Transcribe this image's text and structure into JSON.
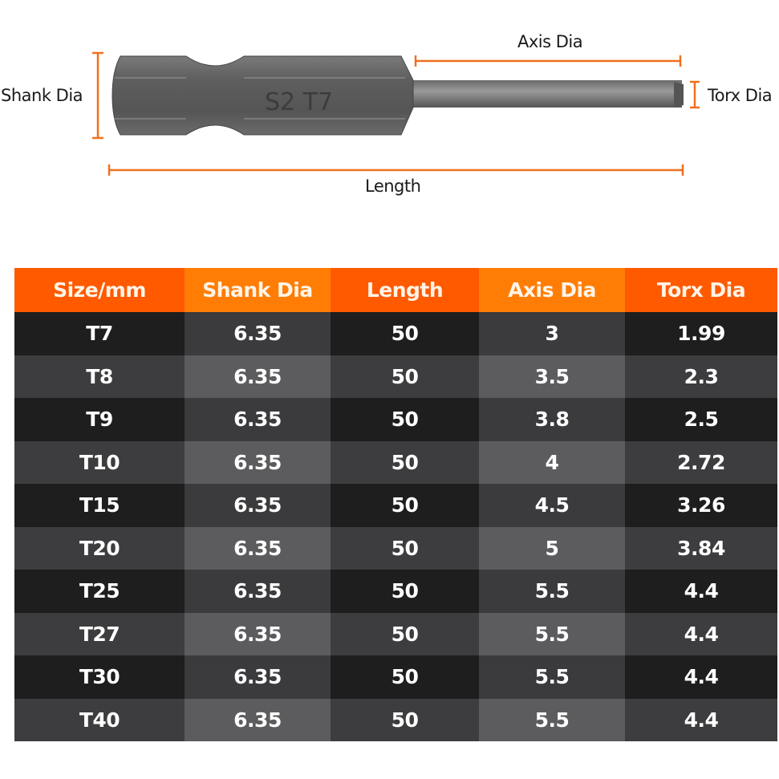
{
  "diagram": {
    "labels": {
      "shank_dia": "Shank Dia",
      "axis_dia": "Axis Dia",
      "torx_dia": "Torx Dia",
      "length": "Length"
    },
    "bit_marking": "S2 T7",
    "accent_color": "#f0701e"
  },
  "table": {
    "headers": [
      "Size/mm",
      "Shank Dia",
      "Length",
      "Axis Dia",
      "Torx Dia"
    ],
    "rows": [
      [
        "T7",
        "6.35",
        "50",
        "3",
        "1.99"
      ],
      [
        "T8",
        "6.35",
        "50",
        "3.5",
        "2.3"
      ],
      [
        "T9",
        "6.35",
        "50",
        "3.8",
        "2.5"
      ],
      [
        "T10",
        "6.35",
        "50",
        "4",
        "2.72"
      ],
      [
        "T15",
        "6.35",
        "50",
        "4.5",
        "3.26"
      ],
      [
        "T20",
        "6.35",
        "50",
        "5",
        "3.84"
      ],
      [
        "T25",
        "6.35",
        "50",
        "5.5",
        "4.4"
      ],
      [
        "T27",
        "6.35",
        "50",
        "5.5",
        "4.4"
      ],
      [
        "T30",
        "6.35",
        "50",
        "5.5",
        "4.4"
      ],
      [
        "T40",
        "6.35",
        "50",
        "5.5",
        "4.4"
      ]
    ],
    "header_colors": [
      "#ff5a00",
      "#ff7d05"
    ]
  }
}
